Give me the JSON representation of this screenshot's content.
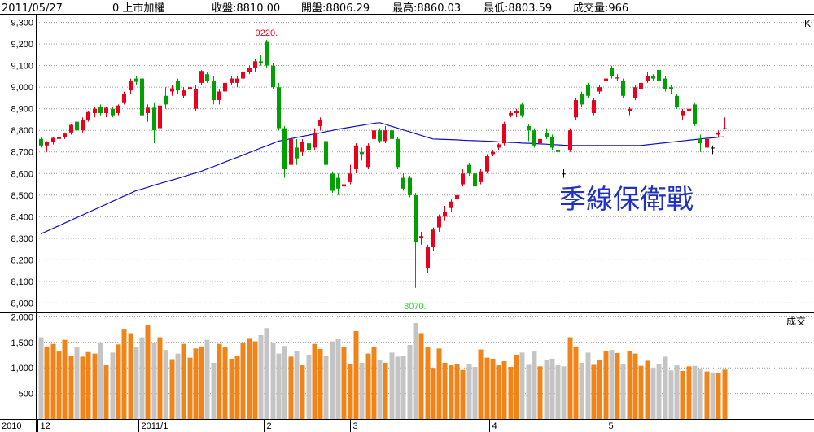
{
  "header": {
    "date": "2011/05/27",
    "code": "0 上市加權",
    "close": "收盤:8810.00",
    "open": "開盤:8806.29",
    "high": "最高:8860.03",
    "low": "最低:8803.59",
    "volume": "成交量:966"
  },
  "chart_data": {
    "type": "candlestick",
    "panel_label": "K",
    "volume_label": "成交",
    "year_label": "2010",
    "note": "季線保衛戰",
    "max_label": "9220.",
    "min_label": "8070.",
    "up_color": "#e8001c",
    "down_color": "#00a000",
    "flat_color": "#000000",
    "ma_color": "#1010c0",
    "volume_up_color": "#f08418",
    "volume_down_color": "#c4c4c4",
    "note_color": "#2030c0",
    "ylim": [
      7960,
      9340
    ],
    "yticks": [
      {
        "value": 8000,
        "label": "8,000"
      },
      {
        "value": 8100,
        "label": "8,100"
      },
      {
        "value": 8200,
        "label": "8,200"
      },
      {
        "value": 8300,
        "label": "8,300"
      },
      {
        "value": 8400,
        "label": "8,400"
      },
      {
        "value": 8500,
        "label": "8,500"
      },
      {
        "value": 8600,
        "label": "8,600"
      },
      {
        "value": 8700,
        "label": "8,700"
      },
      {
        "value": 8800,
        "label": "8,800"
      },
      {
        "value": 8900,
        "label": "8,900"
      },
      {
        "value": 9000,
        "label": "9,000"
      },
      {
        "value": 9100,
        "label": "9,100"
      },
      {
        "value": 9200,
        "label": "9,200"
      },
      {
        "value": 9300,
        "label": "9,300"
      }
    ],
    "vlim": [
      0,
      2070
    ],
    "vticks": [
      500,
      {
        "value": 1000,
        "label": "1,000"
      },
      {
        "value": 1500,
        "label": "1,500"
      },
      {
        "value": 2000,
        "label": "2,000"
      }
    ],
    "xticks": [
      {
        "value": -0.5,
        "label": "12"
      },
      {
        "value": 16.5,
        "label": "2011/1"
      },
      {
        "value": 37.5,
        "label": "2"
      },
      {
        "value": 52,
        "label": "3"
      },
      {
        "value": 75.5,
        "label": "4"
      },
      {
        "value": 95,
        "label": "5"
      }
    ],
    "grid": true,
    "ohlc": [
      [
        8760,
        8770,
        8720,
        8730
      ],
      [
        8730,
        8750,
        8700,
        8745
      ],
      [
        8745,
        8770,
        8735,
        8765
      ],
      [
        8760,
        8790,
        8750,
        8770
      ],
      [
        8770,
        8790,
        8760,
        8785
      ],
      [
        8790,
        8830,
        8780,
        8825
      ],
      [
        8840,
        8870,
        8780,
        8800
      ],
      [
        8800,
        8860,
        8790,
        8850
      ],
      [
        8850,
        8890,
        8840,
        8885
      ],
      [
        8880,
        8910,
        8860,
        8900
      ],
      [
        8910,
        8920,
        8870,
        8880
      ],
      [
        8880,
        8910,
        8860,
        8905
      ],
      [
        8900,
        8910,
        8860,
        8870
      ],
      [
        8880,
        8920,
        8870,
        8915
      ],
      [
        8930,
        8980,
        8920,
        8970
      ],
      [
        8985,
        9040,
        8970,
        9030
      ],
      [
        9040,
        9050,
        9010,
        9025
      ],
      [
        9040,
        9050,
        8850,
        8870
      ],
      [
        8880,
        8920,
        8840,
        8905
      ],
      [
        8905,
        8930,
        8740,
        8800
      ],
      [
        8810,
        8930,
        8780,
        8915
      ],
      [
        8960,
        9000,
        8900,
        8920
      ],
      [
        8980,
        9010,
        8960,
        8995
      ],
      [
        9030,
        9040,
        8970,
        8985
      ],
      [
        8960,
        9000,
        8950,
        8985
      ],
      [
        8990,
        9010,
        8970,
        9000
      ],
      [
        8900,
        9010,
        8890,
        8990
      ],
      [
        9020,
        9080,
        9010,
        9075
      ],
      [
        9060,
        9070,
        9020,
        9030
      ],
      [
        9030,
        9050,
        8920,
        8940
      ],
      [
        8940,
        8990,
        8920,
        8980
      ],
      [
        8980,
        9030,
        8970,
        9020
      ],
      [
        9020,
        9050,
        9010,
        9040
      ],
      [
        9020,
        9050,
        9000,
        9040
      ],
      [
        9040,
        9080,
        9030,
        9070
      ],
      [
        9070,
        9100,
        9060,
        9090
      ],
      [
        9090,
        9130,
        9070,
        9120
      ],
      [
        9120,
        9150,
        9100,
        9110
      ],
      [
        9210,
        9220,
        9090,
        9100
      ],
      [
        9100,
        9110,
        8990,
        9000
      ],
      [
        9000,
        9020,
        8800,
        8810
      ],
      [
        8810,
        8820,
        8580,
        8620
      ],
      [
        8640,
        8780,
        8600,
        8760
      ],
      [
        8720,
        8760,
        8640,
        8670
      ],
      [
        8700,
        8760,
        8680,
        8745
      ],
      [
        8740,
        8750,
        8700,
        8710
      ],
      [
        8720,
        8810,
        8710,
        8790
      ],
      [
        8820,
        8860,
        8800,
        8850
      ],
      [
        8750,
        8760,
        8630,
        8640
      ],
      [
        8600,
        8610,
        8510,
        8520
      ],
      [
        8580,
        8600,
        8500,
        8530
      ],
      [
        8540,
        8580,
        8470,
        8550
      ],
      [
        8560,
        8640,
        8550,
        8600
      ],
      [
        8620,
        8740,
        8600,
        8730
      ],
      [
        8700,
        8720,
        8660,
        8690
      ],
      [
        8630,
        8740,
        8620,
        8730
      ],
      [
        8760,
        8810,
        8740,
        8800
      ],
      [
        8800,
        8810,
        8740,
        8750
      ],
      [
        8750,
        8820,
        8740,
        8800
      ],
      [
        8800,
        8810,
        8750,
        8760
      ],
      [
        8760,
        8770,
        8620,
        8630
      ],
      [
        8580,
        8600,
        8520,
        8530
      ],
      [
        8580,
        8590,
        8490,
        8500
      ],
      [
        8500,
        8510,
        8070,
        8280
      ],
      [
        8300,
        8330,
        8270,
        8310
      ],
      [
        8160,
        8270,
        8140,
        8260
      ],
      [
        8260,
        8350,
        8240,
        8340
      ],
      [
        8350,
        8410,
        8330,
        8400
      ],
      [
        8400,
        8450,
        8380,
        8420
      ],
      [
        8440,
        8480,
        8420,
        8470
      ],
      [
        8480,
        8520,
        8460,
        8500
      ],
      [
        8550,
        8620,
        8540,
        8600
      ],
      [
        8640,
        8650,
        8590,
        8600
      ],
      [
        8600,
        8610,
        8530,
        8540
      ],
      [
        8560,
        8620,
        8550,
        8610
      ],
      [
        8610,
        8690,
        8600,
        8680
      ],
      [
        8690,
        8710,
        8680,
        8700
      ],
      [
        8720,
        8740,
        8710,
        8735
      ],
      [
        8740,
        8840,
        8730,
        8830
      ],
      [
        8870,
        8890,
        8860,
        8880
      ],
      [
        8880,
        8900,
        8860,
        8890
      ],
      [
        8920,
        8930,
        8860,
        8870
      ],
      [
        8820,
        8830,
        8750,
        8800
      ],
      [
        8800,
        8810,
        8720,
        8730
      ],
      [
        8740,
        8780,
        8720,
        8760
      ],
      [
        8790,
        8810,
        8760,
        8770
      ],
      [
        8770,
        8780,
        8710,
        8720
      ],
      [
        8710,
        8720,
        8690,
        8700
      ],
      [
        8600,
        8620,
        8580,
        8600
      ],
      [
        8710,
        8810,
        8700,
        8800
      ],
      [
        8860,
        8950,
        8850,
        8940
      ],
      [
        8970,
        8980,
        8910,
        8920
      ],
      [
        9010,
        9020,
        8950,
        8960
      ],
      [
        8880,
        8950,
        8870,
        8940
      ],
      [
        8980,
        9010,
        8970,
        9000
      ],
      [
        9030,
        9050,
        9020,
        9040
      ],
      [
        9090,
        9100,
        9040,
        9050
      ],
      [
        9040,
        9060,
        9030,
        9045
      ],
      [
        9030,
        9040,
        8950,
        8960
      ],
      [
        8890,
        8910,
        8870,
        8900
      ],
      [
        8950,
        9010,
        8940,
        9000
      ],
      [
        8990,
        9030,
        8980,
        9020
      ],
      [
        9030,
        9070,
        9020,
        9050
      ],
      [
        9050,
        9060,
        9030,
        9040
      ],
      [
        9080,
        9090,
        9020,
        9030
      ],
      [
        9040,
        9050,
        8980,
        8990
      ],
      [
        9000,
        9010,
        8970,
        8990
      ],
      [
        8960,
        8970,
        8900,
        8910
      ],
      [
        8870,
        8900,
        8850,
        8890
      ],
      [
        8890,
        9010,
        8880,
        8900
      ],
      [
        8920,
        8930,
        8820,
        8830
      ],
      [
        8760,
        8780,
        8700,
        8740
      ],
      [
        8720,
        8770,
        8690,
        8760
      ],
      [
        8720,
        8730,
        8690,
        8720
      ],
      [
        8780,
        8800,
        8770,
        8790
      ],
      [
        8806.29,
        8860.03,
        8803.59,
        8810
      ]
    ],
    "volume": [
      1600,
      1420,
      1470,
      1320,
      1550,
      1230,
      1400,
      1220,
      1310,
      1280,
      1500,
      1050,
      1300,
      1460,
      1750,
      1680,
      1400,
      1600,
      1830,
      1500,
      1600,
      1350,
      1170,
      1280,
      1470,
      1200,
      1380,
      1420,
      1550,
      1100,
      1470,
      1400,
      1180,
      1230,
      1500,
      1570,
      1520,
      1640,
      1780,
      1500,
      1280,
      1430,
      1220,
      1330,
      1050,
      1260,
      1470,
      1370,
      1230,
      1520,
      1560,
      1410,
      1070,
      1720,
      1100,
      1280,
      1410,
      1150,
      1100,
      1300,
      1220,
      1240,
      1450,
      1880,
      1680,
      1400,
      1000,
      1380,
      1100,
      1050,
      1080,
      960,
      1080,
      1020,
      1360,
      1200,
      1180,
      1050,
      1130,
      1020,
      1260,
      1300,
      1060,
      1320,
      1030,
      1150,
      1180,
      1050,
      1030,
      1600,
      1420,
      1100,
      1300,
      1060,
      1150,
      1330,
      1350,
      1290,
      1080,
      1330,
      1280,
      1040,
      1140,
      1000,
      1080,
      1220,
      950,
      1050,
      940,
      1030,
      1040,
      970,
      930,
      910,
      900,
      966
    ],
    "ma": [
      8320,
      8332,
      8345,
      8357,
      8370,
      8382,
      8395,
      8407,
      8420,
      8432,
      8445,
      8457,
      8470,
      8482,
      8495,
      8507,
      8520,
      8528,
      8536,
      8545,
      8553,
      8561,
      8569,
      8577,
      8585,
      8594,
      8602,
      8610,
      8621,
      8631,
      8642,
      8653,
      8664,
      8674,
      8685,
      8696,
      8707,
      8718,
      8728,
      8739,
      8750,
      8755,
      8761,
      8766,
      8772,
      8777,
      8783,
      8788,
      8794,
      8799,
      8805,
      8810,
      8814,
      8819,
      8823,
      8828,
      8832,
      8836,
      8828,
      8819,
      8811,
      8802,
      8794,
      8785,
      8777,
      8768,
      8760,
      8759,
      8758,
      8757,
      8756,
      8754,
      8753,
      8752,
      8751,
      8750,
      8749,
      8747,
      8746,
      8744,
      8743,
      8741,
      8740,
      8739,
      8737,
      8736,
      8734,
      8733,
      8731,
      8730,
      8730,
      8730,
      8730,
      8730,
      8730,
      8730,
      8730,
      8730,
      8730,
      8730,
      8730,
      8730,
      8733,
      8736,
      8739,
      8742,
      8745,
      8748,
      8751,
      8754,
      8757,
      8760,
      8763,
      8765,
      8768,
      8770
    ]
  }
}
